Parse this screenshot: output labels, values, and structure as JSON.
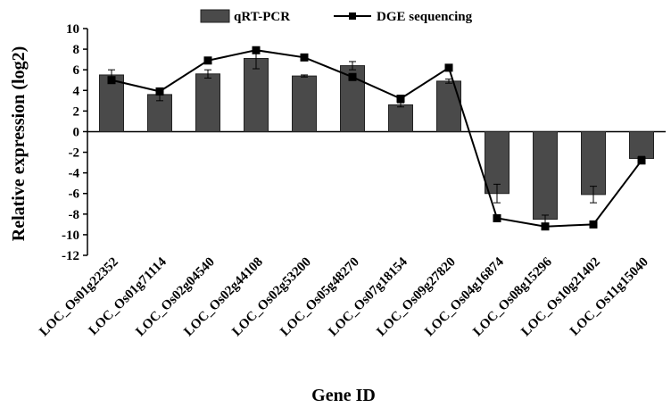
{
  "chart_data": {
    "type": "bar",
    "xlabel": "Gene ID",
    "ylabel": "Relative expression (log2)",
    "ylim": [
      -12,
      10
    ],
    "yticks": [
      -12,
      -10,
      -8,
      -6,
      -4,
      -2,
      0,
      2,
      4,
      6,
      8,
      10
    ],
    "legend_position": "top-center",
    "grid": false,
    "categories": [
      "LOC_Os01g22352",
      "LOC_Os01g71114",
      "LOC_Os02g04540",
      "LOC_Os02g44108",
      "LOC_Os02g53200",
      "LOC_Os05g48270",
      "LOC_Os07g18154",
      "LOC_Os09g27820",
      "LOC_Os04g16874",
      "LOC_Os08g15296",
      "LOC_Os10g21402",
      "LOC_Os11g15040"
    ],
    "series": [
      {
        "name": "qRT-PCR",
        "type": "bar",
        "color": "#4a4a4a",
        "values": [
          5.5,
          3.6,
          5.6,
          7.1,
          5.4,
          6.4,
          2.6,
          4.9,
          -6.0,
          -8.5,
          -6.1,
          -2.6
        ],
        "error": [
          0.5,
          0.6,
          0.4,
          1.0,
          0.1,
          0.4,
          0.2,
          0.2,
          0.9,
          0.4,
          0.8,
          0.2
        ]
      },
      {
        "name": "DGE sequencing",
        "type": "line",
        "color": "#000000",
        "values": [
          5.0,
          3.9,
          6.9,
          7.9,
          7.2,
          5.3,
          3.2,
          6.2,
          -8.4,
          -9.2,
          -9.0,
          -2.8
        ]
      }
    ]
  }
}
